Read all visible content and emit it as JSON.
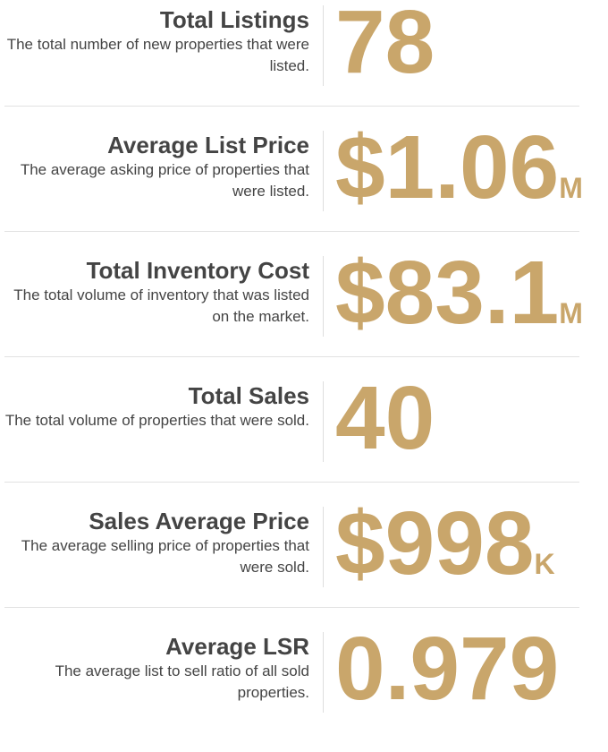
{
  "stats": [
    {
      "title": "Total Listings",
      "description": "The total number of new properties that were listed.",
      "value": "78"
    },
    {
      "title": "Average List Price",
      "description": "The average asking price of properties that were listed.",
      "value": "$1.06",
      "unit": "M"
    },
    {
      "title": "Total Inventory Cost",
      "description": "The total volume of inventory that was listed on the market.",
      "value": "$83.1",
      "unit": "M"
    },
    {
      "title": "Total Sales",
      "description": "The total volume of properties that were sold.",
      "value": "40"
    },
    {
      "title": "Sales Average Price",
      "description": "The average selling price of properties that were sold.",
      "value": "$998",
      "unit": "K"
    },
    {
      "title": "Average LSR",
      "description": "The average list to sell ratio of all sold properties.",
      "value": "0.979"
    }
  ]
}
